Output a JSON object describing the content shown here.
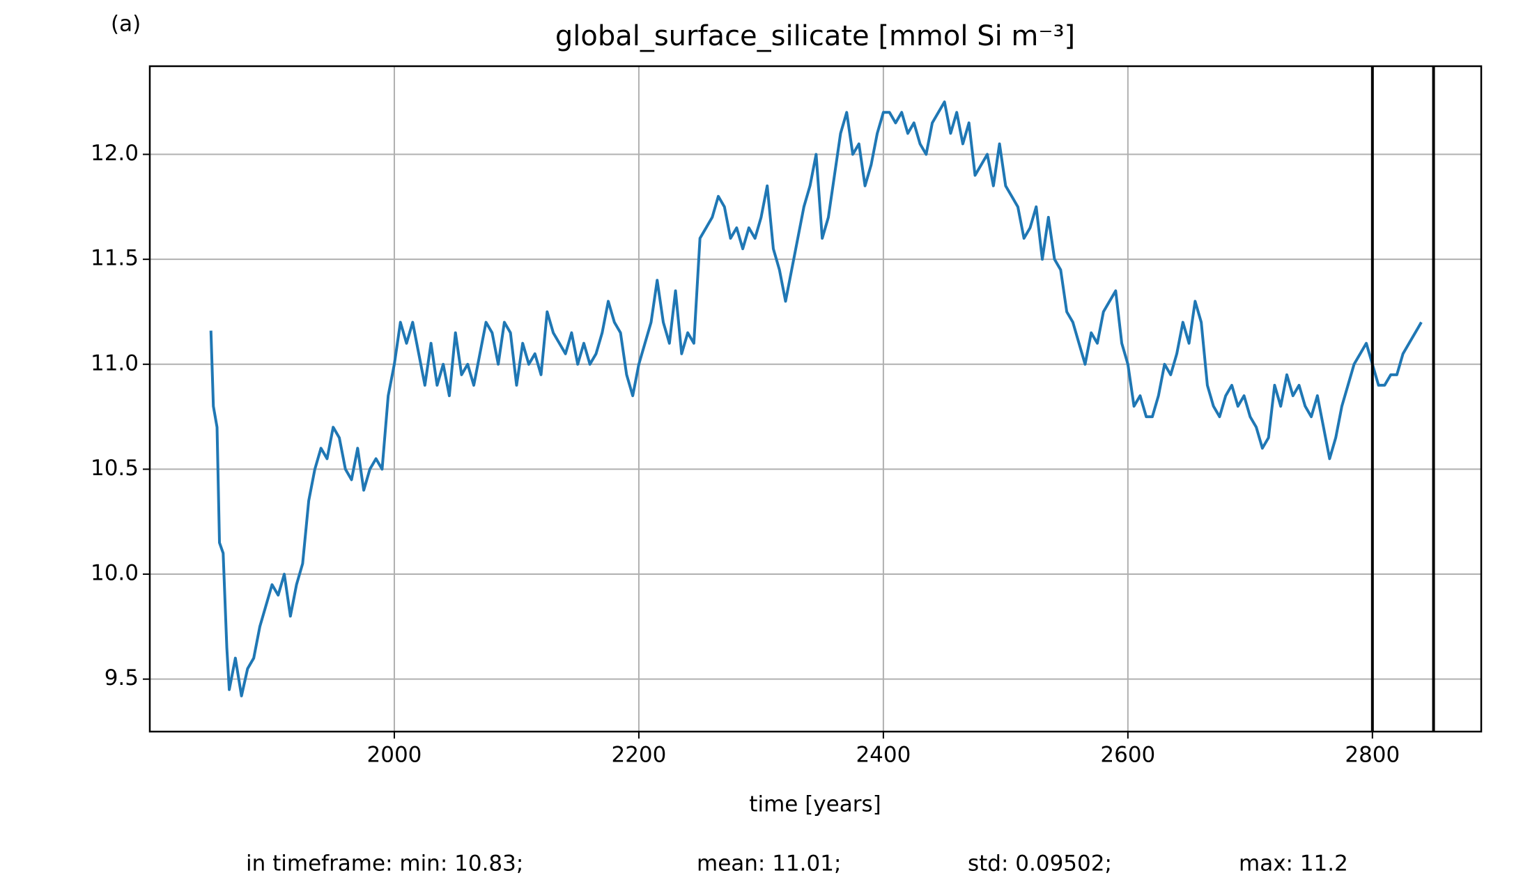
{
  "chart_data": {
    "type": "line",
    "panel_label": "(a)",
    "title": "global_surface_silicate [mmol Si m⁻³]",
    "xlabel": "time [years]",
    "footer": [
      "in timeframe: min: 10.83;",
      "mean: 11.01;",
      "std: 0.09502;",
      "max: 11.2"
    ],
    "color": "#1f77b4",
    "grid": true,
    "vlines": [
      2800,
      2850
    ],
    "vline_color": "#000000",
    "xlim": [
      1800,
      2889
    ],
    "ylim": [
      9.25,
      12.42
    ],
    "xticks": [
      2000,
      2200,
      2400,
      2600,
      2800
    ],
    "yticks": [
      9.5,
      {
        "value": 10,
        "label": "10.0"
      },
      10.5,
      {
        "value": 11,
        "label": "11.0"
      },
      11.5,
      {
        "value": 12,
        "label": "12.0"
      }
    ],
    "x": [
      1850,
      1852,
      1855,
      1857,
      1860,
      1863,
      1865,
      1870,
      1875,
      1880,
      1885,
      1890,
      1895,
      1900,
      1905,
      1910,
      1915,
      1920,
      1925,
      1930,
      1935,
      1940,
      1945,
      1950,
      1955,
      1960,
      1965,
      1970,
      1975,
      1980,
      1985,
      1990,
      1995,
      2000,
      2005,
      2010,
      2015,
      2020,
      2025,
      2030,
      2035,
      2040,
      2045,
      2050,
      2055,
      2060,
      2065,
      2070,
      2075,
      2080,
      2085,
      2090,
      2095,
      2100,
      2105,
      2110,
      2115,
      2120,
      2125,
      2130,
      2135,
      2140,
      2145,
      2150,
      2155,
      2160,
      2165,
      2170,
      2175,
      2180,
      2185,
      2190,
      2195,
      2200,
      2205,
      2210,
      2215,
      2220,
      2225,
      2230,
      2235,
      2240,
      2245,
      2250,
      2255,
      2260,
      2265,
      2270,
      2275,
      2280,
      2285,
      2290,
      2295,
      2300,
      2305,
      2310,
      2315,
      2320,
      2325,
      2330,
      2335,
      2340,
      2345,
      2350,
      2355,
      2360,
      2365,
      2370,
      2375,
      2380,
      2385,
      2390,
      2395,
      2400,
      2405,
      2410,
      2415,
      2420,
      2425,
      2430,
      2435,
      2440,
      2445,
      2450,
      2455,
      2460,
      2465,
      2470,
      2475,
      2480,
      2485,
      2490,
      2495,
      2500,
      2505,
      2510,
      2515,
      2520,
      2525,
      2530,
      2535,
      2540,
      2545,
      2550,
      2555,
      2560,
      2565,
      2570,
      2575,
      2580,
      2585,
      2590,
      2595,
      2600,
      2605,
      2610,
      2615,
      2620,
      2625,
      2630,
      2635,
      2640,
      2645,
      2650,
      2655,
      2660,
      2665,
      2670,
      2675,
      2680,
      2685,
      2690,
      2695,
      2700,
      2705,
      2710,
      2715,
      2720,
      2725,
      2730,
      2735,
      2740,
      2745,
      2750,
      2755,
      2760,
      2765,
      2770,
      2775,
      2780,
      2785,
      2790,
      2795,
      2800,
      2805,
      2810,
      2815,
      2820,
      2825,
      2830,
      2835,
      2840
    ],
    "values": [
      11.16,
      10.8,
      10.7,
      10.15,
      10.1,
      9.65,
      9.45,
      9.6,
      9.42,
      9.55,
      9.6,
      9.75,
      9.85,
      9.95,
      9.9,
      10.0,
      9.8,
      9.95,
      10.05,
      10.35,
      10.5,
      10.6,
      10.55,
      10.7,
      10.65,
      10.5,
      10.45,
      10.6,
      10.4,
      10.5,
      10.55,
      10.5,
      10.85,
      11.0,
      11.2,
      11.1,
      11.2,
      11.05,
      10.9,
      11.1,
      10.9,
      11.0,
      10.85,
      11.15,
      10.95,
      11.0,
      10.9,
      11.05,
      11.2,
      11.15,
      11.0,
      11.2,
      11.15,
      10.9,
      11.1,
      11.0,
      11.05,
      10.95,
      11.25,
      11.15,
      11.1,
      11.05,
      11.15,
      11.0,
      11.1,
      11.0,
      11.05,
      11.15,
      11.3,
      11.2,
      11.15,
      10.95,
      10.85,
      11.0,
      11.1,
      11.2,
      11.4,
      11.2,
      11.1,
      11.35,
      11.05,
      11.15,
      11.1,
      11.6,
      11.65,
      11.7,
      11.8,
      11.75,
      11.6,
      11.65,
      11.55,
      11.65,
      11.6,
      11.7,
      11.85,
      11.55,
      11.45,
      11.3,
      11.45,
      11.6,
      11.75,
      11.85,
      12.0,
      11.6,
      11.7,
      11.9,
      12.1,
      12.2,
      12.0,
      12.05,
      11.85,
      11.95,
      12.1,
      12.2,
      12.2,
      12.15,
      12.2,
      12.1,
      12.15,
      12.05,
      12.0,
      12.15,
      12.2,
      12.25,
      12.1,
      12.2,
      12.05,
      12.15,
      11.9,
      11.95,
      12.0,
      11.85,
      12.05,
      11.85,
      11.8,
      11.75,
      11.6,
      11.65,
      11.75,
      11.5,
      11.7,
      11.5,
      11.45,
      11.25,
      11.2,
      11.1,
      11.0,
      11.15,
      11.1,
      11.25,
      11.3,
      11.35,
      11.1,
      11.0,
      10.8,
      10.85,
      10.75,
      10.75,
      10.85,
      11.0,
      10.95,
      11.05,
      11.2,
      11.1,
      11.3,
      11.2,
      10.9,
      10.8,
      10.75,
      10.85,
      10.9,
      10.8,
      10.85,
      10.75,
      10.7,
      10.6,
      10.65,
      10.9,
      10.8,
      10.95,
      10.85,
      10.9,
      10.8,
      10.75,
      10.85,
      10.7,
      10.55,
      10.65,
      10.8,
      10.9,
      11.0,
      11.05,
      11.1,
      11.0,
      10.9,
      10.9,
      10.95,
      10.95,
      11.05,
      11.1,
      11.15,
      11.2
    ]
  }
}
